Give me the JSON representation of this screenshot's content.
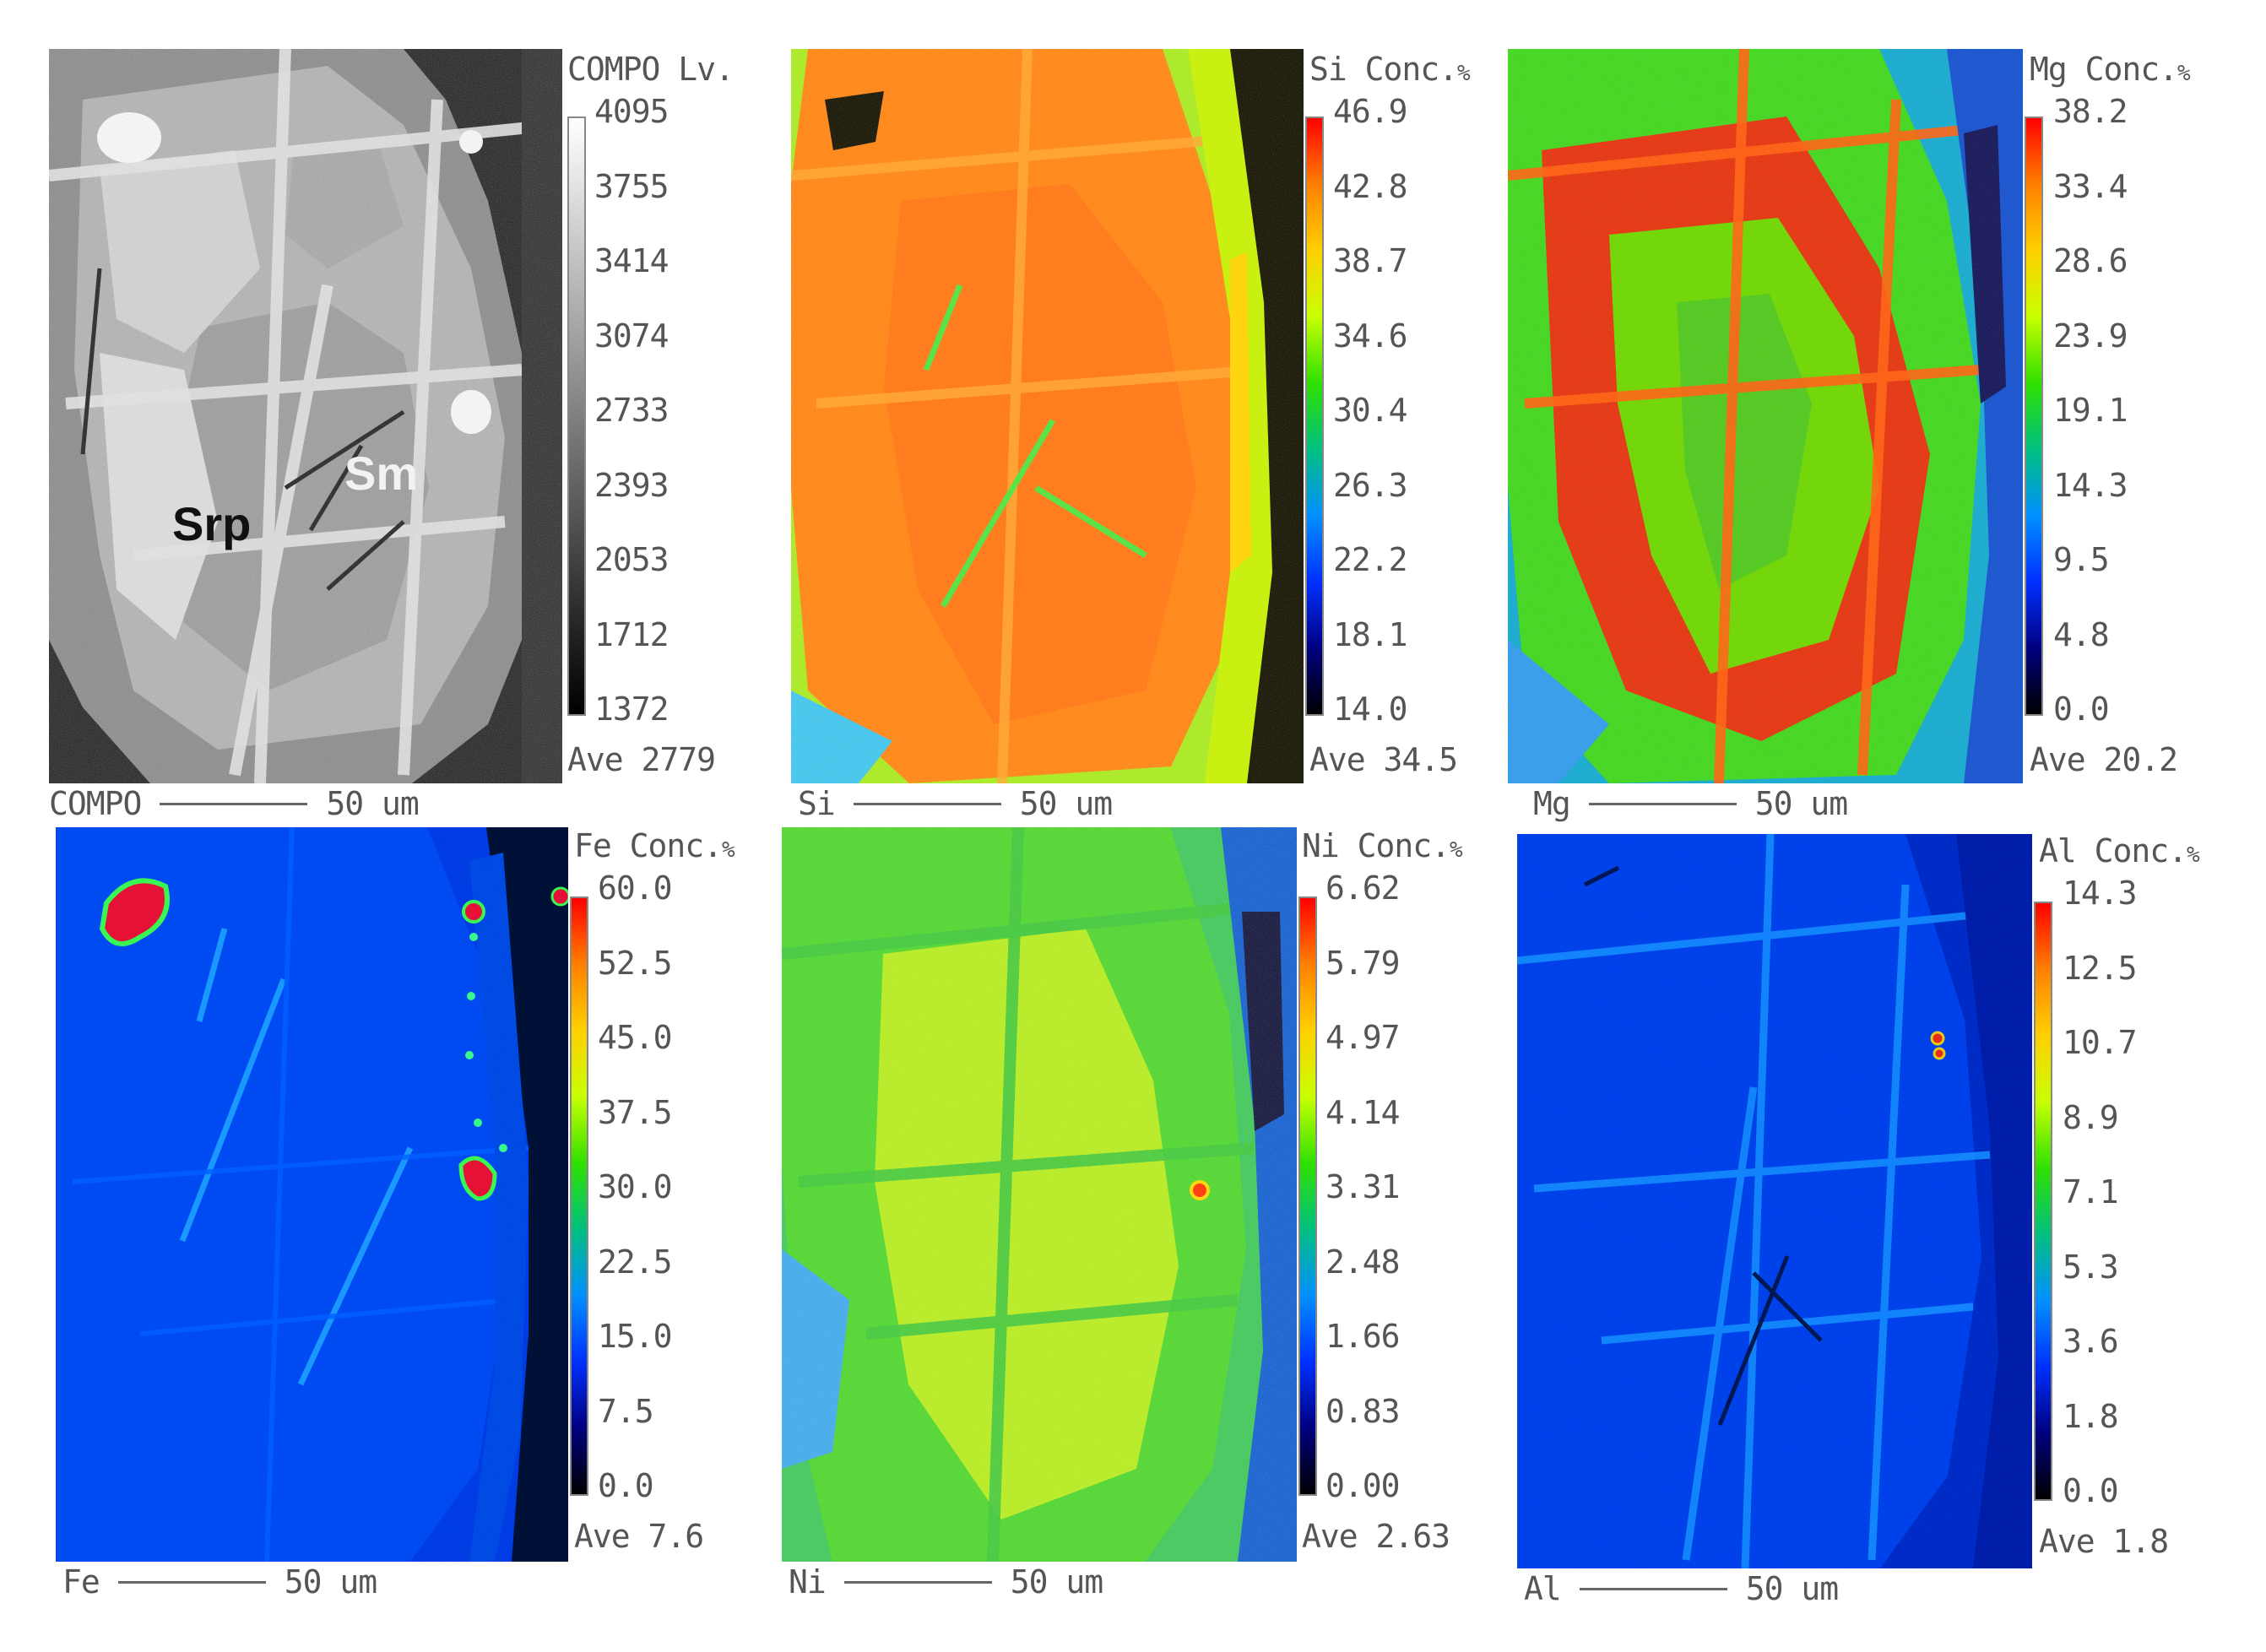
{
  "panels": [
    {
      "id": "compo",
      "title": "COMPO Lv.",
      "unit": "",
      "ticks": [
        "4095",
        "3755",
        "3414",
        "3074",
        "2733",
        "2393",
        "2053",
        "1712",
        "1372"
      ],
      "average": "Ave 2779",
      "scale_label": "COMPO",
      "scale_value": "50 um",
      "colormap": "grayscale",
      "mineral_labels": [
        "Srp",
        "Sm"
      ]
    },
    {
      "id": "si",
      "title": "Si Conc.",
      "unit": "%",
      "ticks": [
        "46.9",
        "42.8",
        "38.7",
        "34.6",
        "30.4",
        "26.3",
        "22.2",
        "18.1",
        "14.0"
      ],
      "average": "Ave 34.5",
      "scale_label": "Si",
      "scale_value": "50 um",
      "colormap": "rainbow"
    },
    {
      "id": "mg",
      "title": "Mg Conc.",
      "unit": "%",
      "ticks": [
        "38.2",
        "33.4",
        "28.6",
        "23.9",
        "19.1",
        "14.3",
        "9.5",
        "4.8",
        "0.0"
      ],
      "average": "Ave 20.2",
      "scale_label": "Mg",
      "scale_value": "50 um",
      "colormap": "rainbow"
    },
    {
      "id": "fe",
      "title": "Fe Conc.",
      "unit": "%",
      "ticks": [
        "60.0",
        "52.5",
        "45.0",
        "37.5",
        "30.0",
        "22.5",
        "15.0",
        "7.5",
        "0.0"
      ],
      "average": "Ave 7.6",
      "scale_label": "Fe",
      "scale_value": "50 um",
      "colormap": "rainbow"
    },
    {
      "id": "ni",
      "title": "Ni Conc.",
      "unit": "%",
      "ticks": [
        "6.62",
        "5.79",
        "4.97",
        "4.14",
        "3.31",
        "2.48",
        "1.66",
        "0.83",
        "0.00"
      ],
      "average": "Ave 2.63",
      "scale_label": "Ni",
      "scale_value": "50 um",
      "colormap": "rainbow"
    },
    {
      "id": "al",
      "title": "Al Conc.",
      "unit": "%",
      "ticks": [
        "14.3",
        "12.5",
        "10.7",
        "8.9",
        "7.1",
        "5.3",
        "3.6",
        "1.8",
        "0.0"
      ],
      "average": "Ave 1.8",
      "scale_label": "Al",
      "scale_value": "50 um",
      "colormap": "rainbow"
    }
  ],
  "colors": {
    "rainbow": [
      "#ff0000",
      "#ff8000",
      "#ffd000",
      "#c8ff00",
      "#30e000",
      "#00c080",
      "#0090ff",
      "#0030ff",
      "#000080",
      "#000000"
    ],
    "grayscale": [
      "#ffffff",
      "#000000"
    ]
  }
}
